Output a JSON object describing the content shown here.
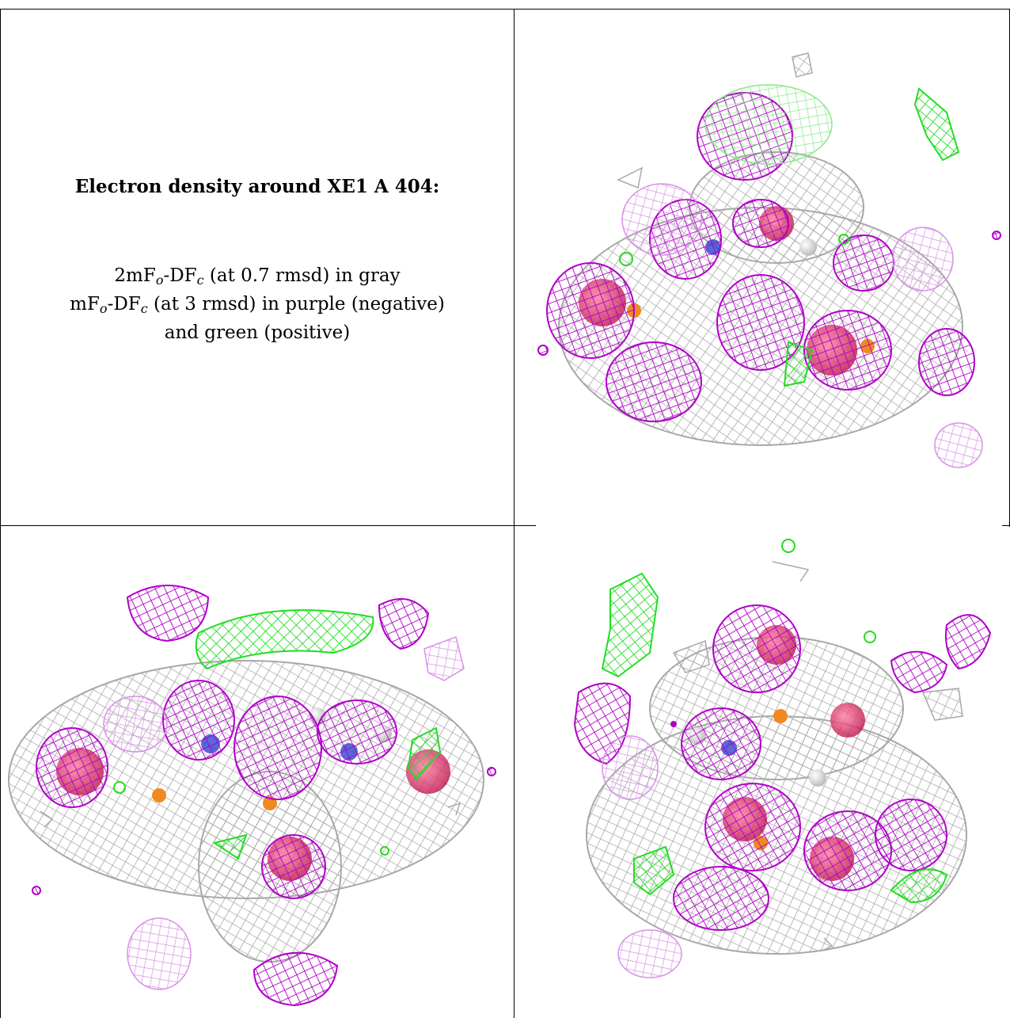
{
  "caption": {
    "title": "Electron density around XE1 A 404:",
    "line1_main": "2mF",
    "line1_sub_o": "o",
    "line1_mid": "-DF",
    "line1_sub_c": "c",
    "line1_rest": " (at 0.7 rmsd) in gray",
    "line2_main": "mF",
    "line2_sub_o": "o",
    "line2_mid": "-DF",
    "line2_sub_c": "c",
    "line2_rest": " (at 3 rmsd) in purple (negative)",
    "line3": "and green (positive)"
  },
  "colors": {
    "gray_mesh": "#a8a8a8",
    "purple_mesh": "#b000c8",
    "light_purple_mesh": "#d890e6",
    "green_mesh": "#22dd22",
    "light_green_mesh": "#88e888",
    "atom_red": "#e03060",
    "atom_orange": "#f08a20",
    "atom_blue": "#3044d0",
    "atom_white": "#eeeeee"
  },
  "panels": [
    {
      "name": "top-right",
      "view": "electron-density-view-1"
    },
    {
      "name": "bottom-left",
      "view": "electron-density-view-2"
    },
    {
      "name": "bottom-right",
      "view": "electron-density-view-3"
    }
  ]
}
